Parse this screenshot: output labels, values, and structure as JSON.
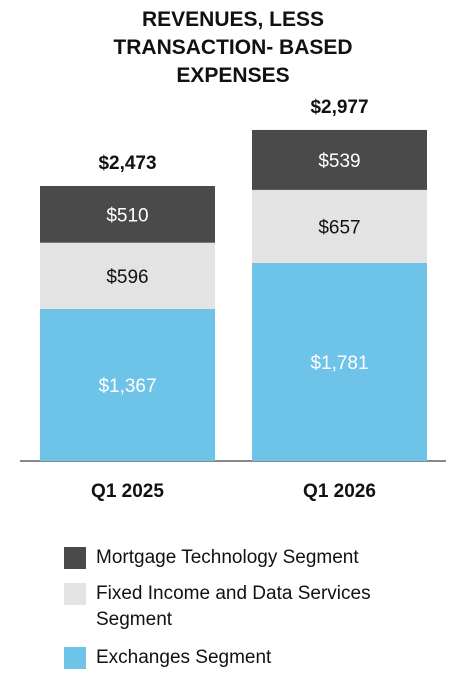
{
  "chart_data": {
    "type": "stacked-bar",
    "title": "REVENUES, LESS TRANSACTION- BASED EXPENSES",
    "categories": [
      "Q1 2025",
      "Q1 2026"
    ],
    "series": [
      {
        "name": "Exchanges Segment",
        "color": "#6ec3e8",
        "label_color": "#ffffff",
        "values": [
          1367,
          1781
        ],
        "value_labels": [
          "$1,367",
          "$1,781"
        ]
      },
      {
        "name": "Fixed Income and Data Services Segment",
        "color": "#e3e3e3",
        "label_color": "#111111",
        "values": [
          596,
          657
        ],
        "value_labels": [
          "$596",
          "$657"
        ]
      },
      {
        "name": "Mortgage Technology Segment",
        "color": "#4a4a4a",
        "label_color": "#ffffff",
        "values": [
          510,
          539
        ],
        "value_labels": [
          "$510",
          "$539"
        ]
      }
    ],
    "totals": [
      2473,
      2977
    ],
    "total_labels": [
      "$2,473",
      "$2,977"
    ]
  }
}
